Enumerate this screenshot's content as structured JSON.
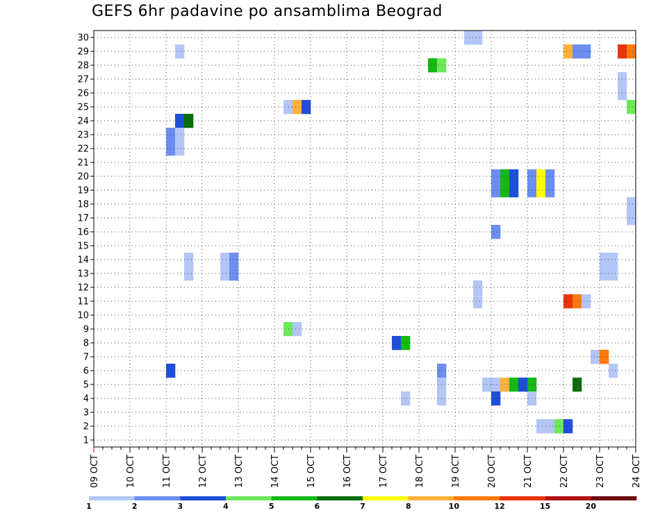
{
  "chart_data": {
    "type": "heatmap",
    "title": "GEFS 6hr padavine po ansamblima Beograd",
    "xlabel": "",
    "ylabel": "",
    "x_ticks": [
      "09 OCT",
      "10 OCT",
      "11 OCT",
      "12 OCT",
      "13 OCT",
      "14 OCT",
      "15 OCT",
      "16 OCT",
      "17 OCT",
      "18 OCT",
      "19 OCT",
      "20 OCT",
      "21 OCT",
      "22 OCT",
      "23 OCT",
      "24 OCT"
    ],
    "y_ticks": [
      "1",
      "2",
      "3",
      "4",
      "5",
      "6",
      "7",
      "8",
      "9",
      "10",
      "11",
      "12",
      "13",
      "14",
      "15",
      "16",
      "17",
      "18",
      "19",
      "20",
      "21",
      "22",
      "23",
      "24",
      "25",
      "26",
      "27",
      "28",
      "29",
      "30"
    ],
    "xlim_steps": [
      0,
      60
    ],
    "ylim_members": [
      0.5,
      30.5
    ],
    "grid": true,
    "legend_placement": "bottom",
    "levels": [
      "1",
      "2",
      "3",
      "4",
      "5",
      "6",
      "7",
      "8",
      "10",
      "12",
      "15",
      "20"
    ],
    "level_colors": [
      "#b3c6f5",
      "#6b8ef0",
      "#1f4fd8",
      "#6ee85a",
      "#15b815",
      "#0a6e0a",
      "#ffff00",
      "#ffb23a",
      "#ff7a0a",
      "#e8350a",
      "#b31212",
      "#6e0a0a"
    ],
    "cells": [
      {
        "member": 30,
        "step": 41,
        "cat": 0
      },
      {
        "member": 30,
        "step": 42,
        "cat": 0
      },
      {
        "member": 29,
        "step": 9,
        "cat": 0
      },
      {
        "member": 29,
        "step": 52,
        "cat": 7
      },
      {
        "member": 29,
        "step": 53,
        "cat": 1
      },
      {
        "member": 29,
        "step": 54,
        "cat": 1
      },
      {
        "member": 29,
        "step": 58,
        "cat": 9
      },
      {
        "member": 29,
        "step": 59,
        "cat": 8
      },
      {
        "member": 28,
        "step": 37,
        "cat": 4
      },
      {
        "member": 28,
        "step": 38,
        "cat": 3
      },
      {
        "member": 27,
        "step": 58,
        "cat": 0
      },
      {
        "member": 26,
        "step": 58,
        "cat": 0
      },
      {
        "member": 25,
        "step": 21,
        "cat": 0
      },
      {
        "member": 25,
        "step": 22,
        "cat": 7
      },
      {
        "member": 25,
        "step": 23,
        "cat": 2
      },
      {
        "member": 25,
        "step": 59,
        "cat": 3
      },
      {
        "member": 24,
        "step": 9,
        "cat": 2
      },
      {
        "member": 24,
        "step": 10,
        "cat": 5
      },
      {
        "member": 23,
        "step": 8,
        "cat": 1
      },
      {
        "member": 23,
        "step": 9,
        "cat": 0
      },
      {
        "member": 22,
        "step": 8,
        "cat": 1
      },
      {
        "member": 22,
        "step": 9,
        "cat": 0
      },
      {
        "member": 20,
        "step": 44,
        "cat": 1
      },
      {
        "member": 20,
        "step": 45,
        "cat": 4
      },
      {
        "member": 20,
        "step": 46,
        "cat": 2
      },
      {
        "member": 20,
        "step": 48,
        "cat": 1
      },
      {
        "member": 20,
        "step": 49,
        "cat": 6
      },
      {
        "member": 20,
        "step": 50,
        "cat": 1
      },
      {
        "member": 19,
        "step": 44,
        "cat": 1
      },
      {
        "member": 19,
        "step": 45,
        "cat": 4
      },
      {
        "member": 19,
        "step": 46,
        "cat": 2
      },
      {
        "member": 19,
        "step": 48,
        "cat": 1
      },
      {
        "member": 19,
        "step": 49,
        "cat": 6
      },
      {
        "member": 19,
        "step": 50,
        "cat": 1
      },
      {
        "member": 18,
        "step": 59,
        "cat": 0
      },
      {
        "member": 17,
        "step": 59,
        "cat": 0
      },
      {
        "member": 16,
        "step": 44,
        "cat": 1
      },
      {
        "member": 14,
        "step": 10,
        "cat": 0
      },
      {
        "member": 14,
        "step": 14,
        "cat": 0
      },
      {
        "member": 14,
        "step": 15,
        "cat": 1
      },
      {
        "member": 14,
        "step": 56,
        "cat": 0
      },
      {
        "member": 14,
        "step": 57,
        "cat": 0
      },
      {
        "member": 13,
        "step": 10,
        "cat": 0
      },
      {
        "member": 13,
        "step": 14,
        "cat": 0
      },
      {
        "member": 13,
        "step": 15,
        "cat": 1
      },
      {
        "member": 13,
        "step": 56,
        "cat": 0
      },
      {
        "member": 13,
        "step": 57,
        "cat": 0
      },
      {
        "member": 12,
        "step": 42,
        "cat": 0
      },
      {
        "member": 11,
        "step": 42,
        "cat": 0
      },
      {
        "member": 11,
        "step": 52,
        "cat": 9
      },
      {
        "member": 11,
        "step": 53,
        "cat": 8
      },
      {
        "member": 11,
        "step": 54,
        "cat": 0
      },
      {
        "member": 9,
        "step": 21,
        "cat": 3
      },
      {
        "member": 9,
        "step": 22,
        "cat": 0
      },
      {
        "member": 8,
        "step": 33,
        "cat": 2
      },
      {
        "member": 8,
        "step": 34,
        "cat": 4
      },
      {
        "member": 7,
        "step": 55,
        "cat": 0
      },
      {
        "member": 7,
        "step": 56,
        "cat": 8
      },
      {
        "member": 6,
        "step": 8,
        "cat": 2
      },
      {
        "member": 6,
        "step": 38,
        "cat": 1
      },
      {
        "member": 6,
        "step": 57,
        "cat": 0
      },
      {
        "member": 5,
        "step": 38,
        "cat": 0
      },
      {
        "member": 5,
        "step": 43,
        "cat": 0
      },
      {
        "member": 5,
        "step": 44,
        "cat": 0
      },
      {
        "member": 5,
        "step": 45,
        "cat": 7
      },
      {
        "member": 5,
        "step": 46,
        "cat": 4
      },
      {
        "member": 5,
        "step": 47,
        "cat": 2
      },
      {
        "member": 5,
        "step": 48,
        "cat": 4
      },
      {
        "member": 5,
        "step": 53,
        "cat": 5
      },
      {
        "member": 4,
        "step": 34,
        "cat": 0
      },
      {
        "member": 4,
        "step": 38,
        "cat": 0
      },
      {
        "member": 4,
        "step": 44,
        "cat": 2
      },
      {
        "member": 4,
        "step": 48,
        "cat": 0
      },
      {
        "member": 2,
        "step": 49,
        "cat": 0
      },
      {
        "member": 2,
        "step": 50,
        "cat": 0
      },
      {
        "member": 2,
        "step": 51,
        "cat": 3
      },
      {
        "member": 2,
        "step": 52,
        "cat": 2
      }
    ]
  }
}
